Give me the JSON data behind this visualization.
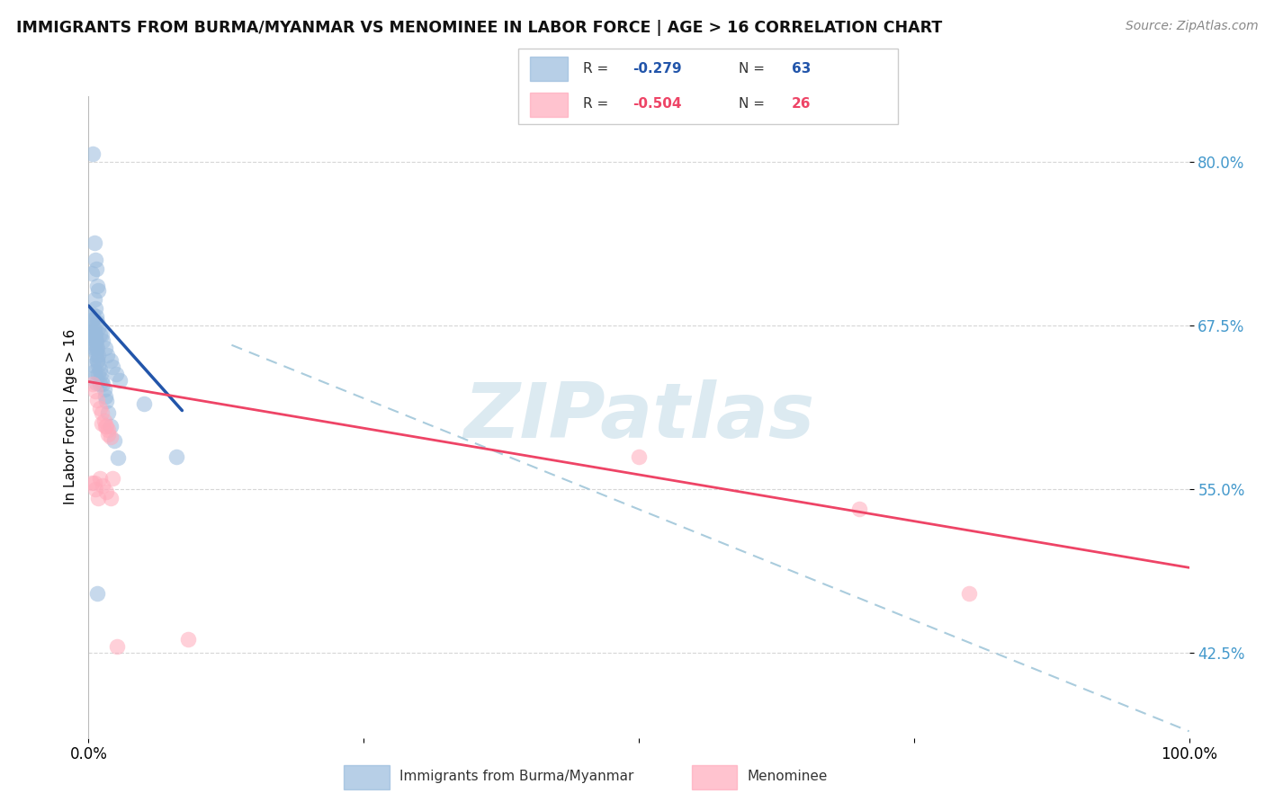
{
  "title": "IMMIGRANTS FROM BURMA/MYANMAR VS MENOMINEE IN LABOR FORCE | AGE > 16 CORRELATION CHART",
  "source": "Source: ZipAtlas.com",
  "ylabel": "In Labor Force | Age > 16",
  "xlim": [
    0.0,
    1.0
  ],
  "ylim": [
    0.36,
    0.85
  ],
  "yticks": [
    0.425,
    0.55,
    0.675,
    0.8
  ],
  "ytick_labels": [
    "42.5%",
    "55.0%",
    "67.5%",
    "80.0%"
  ],
  "xticks": [
    0.0,
    0.25,
    0.5,
    0.75,
    1.0
  ],
  "xtick_labels": [
    "0.0%",
    "",
    "",
    "",
    "100.0%"
  ],
  "legend_blue_R": "-0.279",
  "legend_blue_N": "63",
  "legend_pink_R": "-0.504",
  "legend_pink_N": "26",
  "blue_scatter_color": "#99BBDD",
  "pink_scatter_color": "#FFAABB",
  "blue_line_color": "#2255AA",
  "pink_line_color": "#EE4466",
  "dashed_line_color": "#AACCDD",
  "watermark_text": "ZIPatlas",
  "watermark_color": "#C5DCE8",
  "blue_scatter_x": [
    0.004,
    0.005,
    0.003,
    0.006,
    0.007,
    0.008,
    0.009,
    0.005,
    0.006,
    0.007,
    0.008,
    0.009,
    0.01,
    0.004,
    0.003,
    0.005,
    0.006,
    0.007,
    0.008,
    0.009,
    0.004,
    0.005,
    0.006,
    0.007,
    0.003,
    0.004,
    0.005,
    0.006,
    0.007,
    0.008,
    0.009,
    0.01,
    0.012,
    0.013,
    0.015,
    0.017,
    0.02,
    0.022,
    0.025,
    0.028,
    0.004,
    0.003,
    0.003,
    0.004,
    0.005,
    0.006,
    0.007,
    0.008,
    0.009,
    0.01,
    0.011,
    0.012,
    0.013,
    0.014,
    0.015,
    0.016,
    0.018,
    0.02,
    0.023,
    0.027,
    0.008,
    0.08,
    0.05
  ],
  "blue_scatter_y": [
    0.806,
    0.738,
    0.715,
    0.725,
    0.718,
    0.705,
    0.702,
    0.695,
    0.688,
    0.682,
    0.678,
    0.673,
    0.668,
    0.683,
    0.679,
    0.672,
    0.668,
    0.663,
    0.658,
    0.652,
    0.645,
    0.64,
    0.636,
    0.631,
    0.679,
    0.673,
    0.668,
    0.663,
    0.658,
    0.648,
    0.638,
    0.63,
    0.668,
    0.663,
    0.658,
    0.652,
    0.648,
    0.643,
    0.638,
    0.633,
    0.67,
    0.668,
    0.665,
    0.662,
    0.658,
    0.655,
    0.652,
    0.648,
    0.645,
    0.641,
    0.638,
    0.634,
    0.63,
    0.626,
    0.621,
    0.617,
    0.608,
    0.598,
    0.587,
    0.574,
    0.47,
    0.575,
    0.615
  ],
  "pink_scatter_x": [
    0.004,
    0.006,
    0.008,
    0.01,
    0.012,
    0.014,
    0.016,
    0.018,
    0.02,
    0.005,
    0.003,
    0.006,
    0.009,
    0.012,
    0.015,
    0.018,
    0.022,
    0.026,
    0.01,
    0.013,
    0.016,
    0.02,
    0.5,
    0.8,
    0.7,
    0.09
  ],
  "pink_scatter_y": [
    0.63,
    0.625,
    0.618,
    0.612,
    0.608,
    0.602,
    0.598,
    0.595,
    0.59,
    0.555,
    0.555,
    0.55,
    0.543,
    0.6,
    0.598,
    0.592,
    0.558,
    0.43,
    0.558,
    0.553,
    0.548,
    0.543,
    0.575,
    0.47,
    0.535,
    0.435
  ],
  "blue_trend_x": [
    0.0,
    0.085
  ],
  "blue_trend_y": [
    0.69,
    0.61
  ],
  "pink_trend_x": [
    0.0,
    1.0
  ],
  "pink_trend_y": [
    0.632,
    0.49
  ],
  "dashed_trend_x": [
    0.13,
    1.0
  ],
  "dashed_trend_y": [
    0.66,
    0.365
  ]
}
